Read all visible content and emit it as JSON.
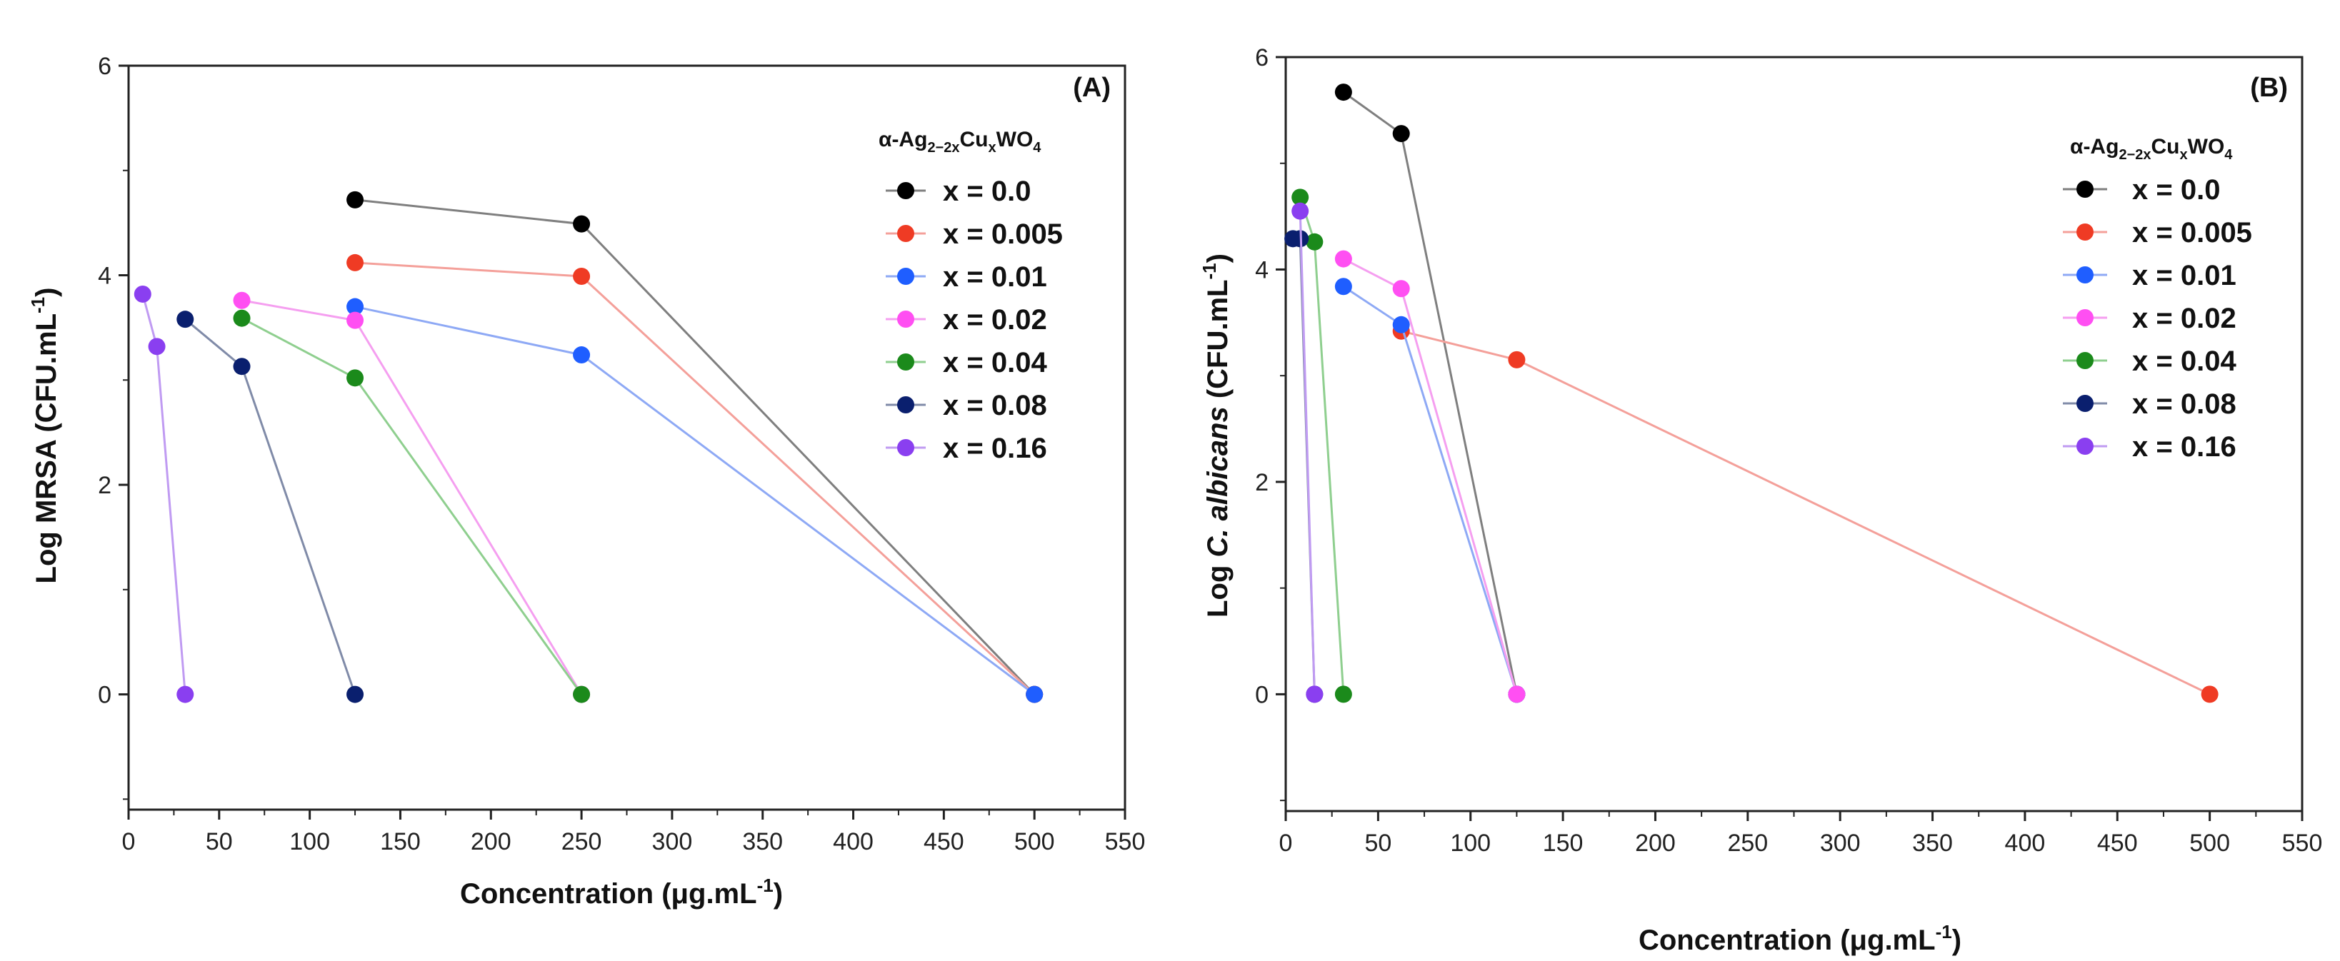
{
  "chart_data": [
    {
      "type": "line",
      "panel_label": "(A)",
      "xlabel": "Concentration (μg.mL",
      "xlabel_sup": "-1",
      "xlabel_end": ")",
      "ylabel": "Log MRSA (CFU.mL",
      "ylabel_sup": "-1",
      "ylabel_end": ")",
      "xlim": [
        0,
        550
      ],
      "ylim": [
        -1.1,
        6
      ],
      "xticks": [
        "0",
        "50",
        "100",
        "150",
        "200",
        "250",
        "300",
        "350",
        "400",
        "450",
        "500",
        "550"
      ],
      "yticks": [
        "0",
        "2",
        "4",
        "6"
      ],
      "legend_title": "α-Ag2-2xCuxWO4",
      "series": [
        {
          "name": "x = 0.0",
          "color": "#000000",
          "line_color": "#7f7f7f",
          "points": [
            [
              125,
              4.72
            ],
            [
              250,
              4.49
            ],
            [
              500,
              0
            ]
          ]
        },
        {
          "name": "x = 0.005",
          "color": "#ef3b24",
          "line_color": "#f4a09a",
          "points": [
            [
              125,
              4.12
            ],
            [
              250,
              3.99
            ],
            [
              500,
              0
            ]
          ]
        },
        {
          "name": "x = 0.01",
          "color": "#1f5eff",
          "line_color": "#8ea9f5",
          "points": [
            [
              125,
              3.7
            ],
            [
              250,
              3.24
            ],
            [
              500,
              0
            ]
          ]
        },
        {
          "name": "x = 0.02",
          "color": "#ff4ff2",
          "line_color": "#f59ff0",
          "points": [
            [
              62.5,
              3.76
            ],
            [
              125,
              3.57
            ],
            [
              250,
              0
            ]
          ]
        },
        {
          "name": "x = 0.04",
          "color": "#1b8a1b",
          "line_color": "#8fcf8f",
          "points": [
            [
              62.5,
              3.59
            ],
            [
              125,
              3.02
            ],
            [
              250,
              0
            ]
          ]
        },
        {
          "name": "x = 0.08",
          "color": "#0a1f6e",
          "line_color": "#808ba8",
          "points": [
            [
              31.25,
              3.58
            ],
            [
              62.5,
              3.13
            ],
            [
              125,
              0
            ]
          ]
        },
        {
          "name": "x = 0.16",
          "color": "#8a3ff0",
          "line_color": "#c09bf2",
          "points": [
            [
              7.8,
              3.82
            ],
            [
              15.6,
              3.32
            ],
            [
              31.25,
              0
            ]
          ]
        }
      ]
    },
    {
      "type": "line",
      "panel_label": "(B)",
      "xlabel": "Concentration (μg.mL",
      "xlabel_sup": "-1",
      "xlabel_end": ")",
      "ylabel_pre": "Log ",
      "ylabel_italic": "C. albicans",
      "ylabel_post": " (CFU.mL",
      "ylabel_sup": "-1",
      "ylabel_end": ")",
      "xlim": [
        0,
        550
      ],
      "ylim": [
        -1.1,
        6
      ],
      "xticks": [
        "0",
        "50",
        "100",
        "150",
        "200",
        "250",
        "300",
        "350",
        "400",
        "450",
        "500",
        "550"
      ],
      "yticks": [
        "0",
        "2",
        "4",
        "6"
      ],
      "legend_title": "α-Ag2-2xCuxWO4",
      "series": [
        {
          "name": "x = 0.0",
          "color": "#000000",
          "line_color": "#7f7f7f",
          "points": [
            [
              31.25,
              5.67
            ],
            [
              62.5,
              5.28
            ],
            [
              125,
              0
            ]
          ]
        },
        {
          "name": "x = 0.005",
          "color": "#ef3b24",
          "line_color": "#f4a09a",
          "points": [
            [
              62.5,
              3.42
            ],
            [
              125,
              3.15
            ],
            [
              500,
              0
            ]
          ]
        },
        {
          "name": "x = 0.01",
          "color": "#1f5eff",
          "line_color": "#8ea9f5",
          "points": [
            [
              31.25,
              3.84
            ],
            [
              62.5,
              3.48
            ],
            [
              125,
              0
            ]
          ]
        },
        {
          "name": "x = 0.02",
          "color": "#ff4ff2",
          "line_color": "#f59ff0",
          "points": [
            [
              31.25,
              4.1
            ],
            [
              62.5,
              3.82
            ],
            [
              125,
              0
            ]
          ]
        },
        {
          "name": "x = 0.04",
          "color": "#1b8a1b",
          "line_color": "#8fcf8f",
          "points": [
            [
              7.8,
              4.68
            ],
            [
              15.6,
              4.26
            ],
            [
              31.25,
              0
            ]
          ]
        },
        {
          "name": "x = 0.08",
          "color": "#0a1f6e",
          "line_color": "#808ba8",
          "points": [
            [
              3.9,
              4.29
            ],
            [
              7.8,
              4.29
            ],
            [
              15.6,
              0
            ]
          ]
        },
        {
          "name": "x = 0.16",
          "color": "#8a3ff0",
          "line_color": "#c09bf2",
          "points": [
            [
              7.8,
              4.55
            ],
            [
              15.6,
              0
            ]
          ]
        }
      ]
    }
  ]
}
